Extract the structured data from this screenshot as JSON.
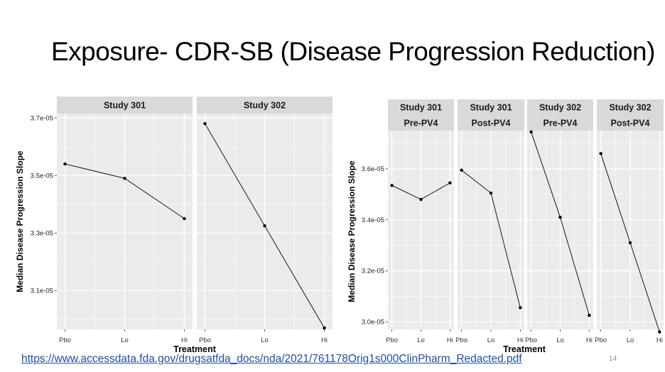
{
  "slide": {
    "title": "Exposure- CDR-SB (Disease Progression Reduction)",
    "source_link": "https://www.accessdata.fda.gov/drugsatfda_docs/nda/2021/761178Orig1s000ClinPharm_Redacted.pdf",
    "page_number": "14"
  },
  "colors": {
    "panel_bg": "#ebebeb",
    "strip_bg": "#d9d9d9",
    "grid": "#ffffff",
    "line": "#000000"
  },
  "chart_data": [
    {
      "type": "line",
      "xlabel": "Treatment",
      "ylabel": "Median Disease Progression Slope",
      "categories": [
        "Pbo",
        "Lo",
        "Hi"
      ],
      "y_ticks": [
        "3.1e-05",
        "3.3e-05",
        "3.5e-05",
        "3.7e-05"
      ],
      "ylim": [
        2.965e-05,
        3.715e-05
      ],
      "grid": true,
      "facets": [
        {
          "strip": [
            "Study 301"
          ],
          "values": [
            3.54e-05,
            3.49e-05,
            3.35e-05
          ]
        },
        {
          "strip": [
            "Study 302"
          ],
          "values": [
            3.68e-05,
            3.325e-05,
            2.97e-05
          ]
        }
      ]
    },
    {
      "type": "line",
      "xlabel": "Treatment",
      "ylabel": "Median Disease Progression Slope",
      "categories": [
        "Pbo",
        "Lo",
        "Hi"
      ],
      "y_ticks": [
        "3.0e-05",
        "3.2e-05",
        "3.4e-05",
        "3.6e-05"
      ],
      "ylim": [
        2.97e-05,
        3.75e-05
      ],
      "grid": true,
      "facets": [
        {
          "strip": [
            "Study 301",
            "Pre-PV4"
          ],
          "values": [
            3.535e-05,
            3.48e-05,
            3.545e-05
          ]
        },
        {
          "strip": [
            "Study 301",
            "Post-PV4"
          ],
          "values": [
            3.595e-05,
            3.505e-05,
            3.055e-05
          ]
        },
        {
          "strip": [
            "Study 302",
            "Pre-PV4"
          ],
          "values": [
            3.745e-05,
            3.41e-05,
            3.025e-05
          ]
        },
        {
          "strip": [
            "Study 302",
            "Post-PV4"
          ],
          "values": [
            3.66e-05,
            3.31e-05,
            2.96e-05
          ]
        }
      ]
    }
  ]
}
